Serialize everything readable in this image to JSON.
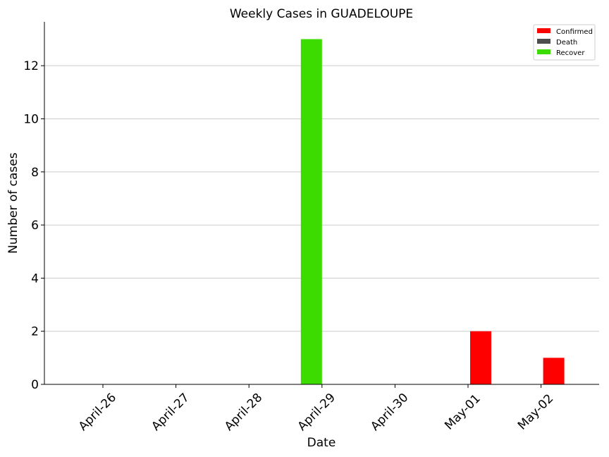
{
  "chart_data": {
    "type": "bar",
    "title": "Weekly Cases in GUADELOUPE",
    "xlabel": "Date",
    "ylabel": "Number of cases",
    "categories": [
      "April-26",
      "April-27",
      "April-28",
      "April-29",
      "April-30",
      "May-01",
      "May-02"
    ],
    "series": [
      {
        "name": "Confirmed",
        "color": "#ff0000",
        "values": [
          0,
          0,
          0,
          0,
          0,
          2,
          1
        ]
      },
      {
        "name": "Death",
        "color": "#4d4d4d",
        "values": [
          0,
          0,
          0,
          0,
          0,
          0,
          0
        ]
      },
      {
        "name": "Recover",
        "color": "#3ddc00",
        "values": [
          0,
          0,
          0,
          13,
          0,
          0,
          0
        ]
      }
    ],
    "ylim": [
      0,
      13.65
    ],
    "yticks": [
      0,
      2,
      4,
      6,
      8,
      10,
      12
    ],
    "grid": "horizontal",
    "legend_position": "top-right"
  }
}
